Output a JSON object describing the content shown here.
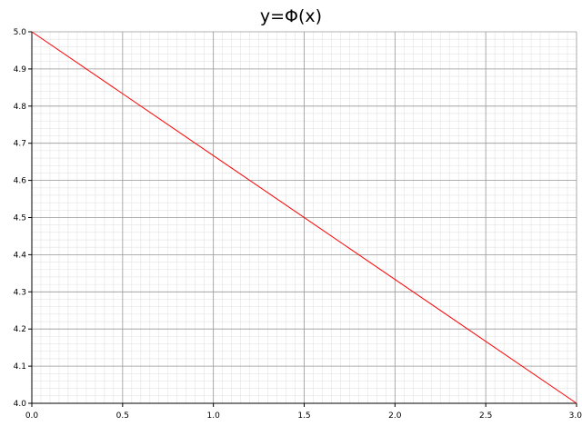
{
  "chart_data": {
    "type": "line",
    "title": "y=Φ(x)",
    "xlabel": "",
    "ylabel": "",
    "xlim": [
      0.0,
      3.0
    ],
    "ylim": [
      4.0,
      5.0
    ],
    "grid": true,
    "x_ticks": [
      "0.0",
      "0.5",
      "1.0",
      "1.5",
      "2.0",
      "2.5",
      "3.0"
    ],
    "y_ticks": [
      "4.0",
      "4.1",
      "4.2",
      "4.3",
      "4.4",
      "4.5",
      "4.6",
      "4.7",
      "4.8",
      "4.9",
      "5.0"
    ],
    "series": [
      {
        "color": "#ff0000",
        "x": [
          0.0,
          3.0
        ],
        "y": [
          5.0,
          4.0
        ]
      }
    ]
  }
}
